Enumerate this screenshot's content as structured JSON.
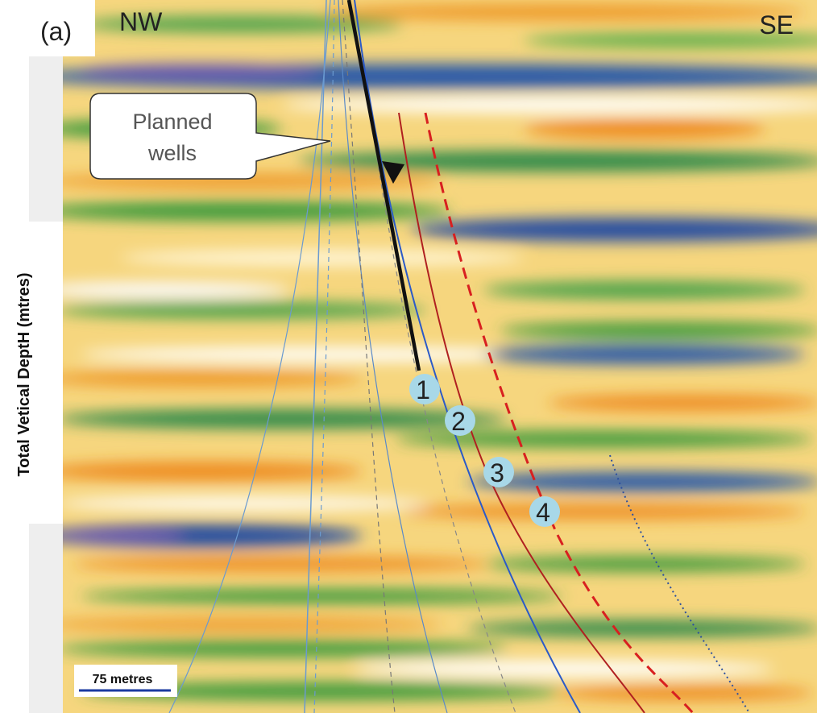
{
  "figure": {
    "panel_label": "(a)",
    "left_direction": "NW",
    "right_direction": "SE",
    "callout": [
      "Planned",
      "wells"
    ],
    "y_axis_label": "Total Vetical DeptH (mtres)",
    "well_markers": [
      "1",
      "2",
      "3",
      "4"
    ],
    "scale_bar": "75 metres"
  }
}
